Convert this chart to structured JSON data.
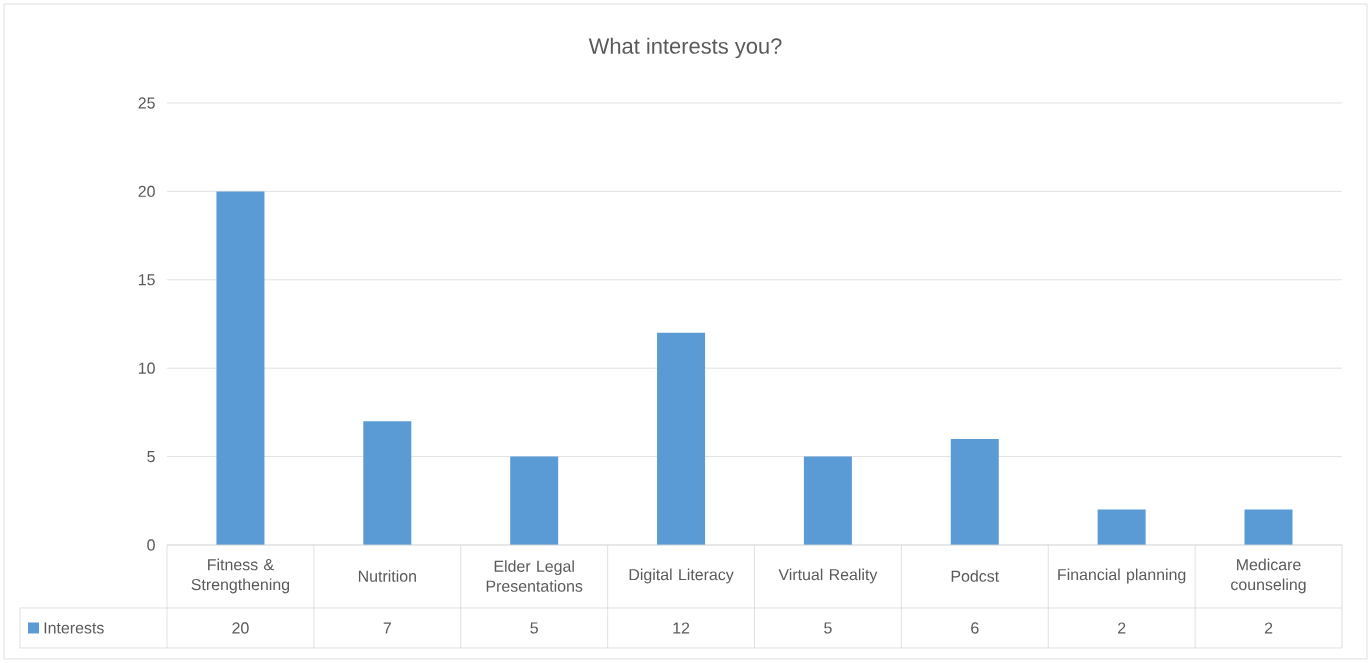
{
  "chart_data": {
    "type": "bar",
    "title": "What interests you?",
    "categories": [
      "Fitness & Strengthening",
      "Nutrition",
      "Elder Legal Presentations",
      "Digital Literacy",
      "Virtual Reality",
      "Podcst",
      "Financial planning",
      "Medicare counseling"
    ],
    "series": [
      {
        "name": "Interests",
        "color": "#5b9bd5",
        "values": [
          20,
          7,
          5,
          12,
          5,
          6,
          2,
          2
        ]
      }
    ],
    "ylim": [
      0,
      25
    ],
    "yticks": [
      0,
      5,
      10,
      15,
      20,
      25
    ],
    "grid": "y",
    "legend": "bottom",
    "data_labels": true
  }
}
